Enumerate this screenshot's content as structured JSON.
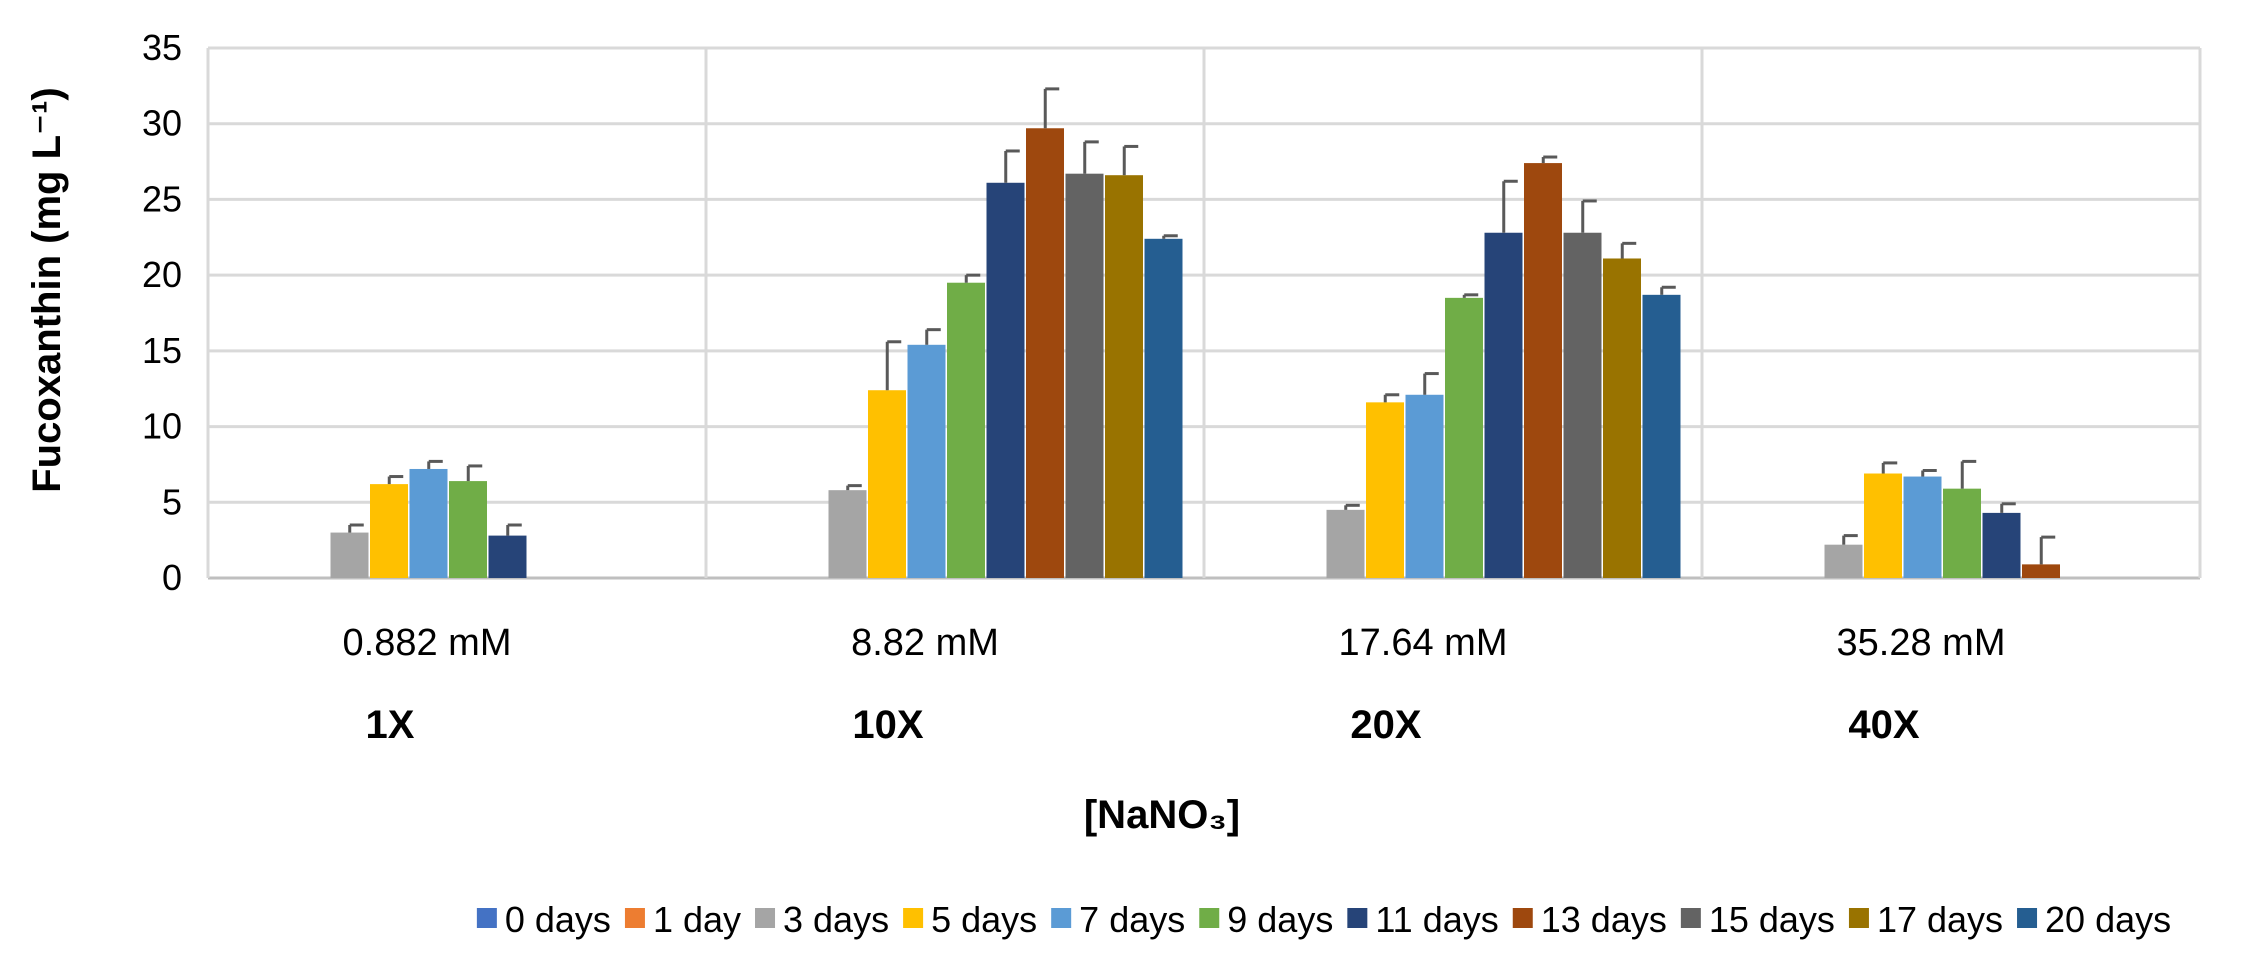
{
  "chart_data": {
    "type": "bar",
    "title": "",
    "ylabel": "Fucoxanthin (mg L⁻¹)",
    "xlabel": "[NaNO₃]",
    "ylim": [
      0,
      35
    ],
    "yticks": [
      0,
      5,
      10,
      15,
      20,
      25,
      30,
      35
    ],
    "grid": true,
    "legend_position": "bottom",
    "categories": [
      "0.882 mM",
      "8.82 mM",
      "17.64 mM",
      "35.28 mM"
    ],
    "category_sublabels": [
      "1X",
      "10X",
      "20X",
      "40X"
    ],
    "series": [
      {
        "name": "0 days",
        "color": "#4472C4",
        "values": [
          0,
          0,
          0,
          0
        ],
        "errors": [
          0,
          0,
          0,
          0
        ]
      },
      {
        "name": "1 day",
        "color": "#ED7D31",
        "values": [
          0,
          0,
          0,
          0
        ],
        "errors": [
          0,
          0,
          0,
          0
        ]
      },
      {
        "name": "3 days",
        "color": "#A5A5A5",
        "values": [
          3.0,
          5.8,
          4.5,
          2.2
        ],
        "errors": [
          0.5,
          0.3,
          0.3,
          0.6
        ]
      },
      {
        "name": "5 days",
        "color": "#FFC000",
        "values": [
          6.2,
          12.4,
          11.6,
          6.9
        ],
        "errors": [
          0.5,
          3.2,
          0.5,
          0.7
        ]
      },
      {
        "name": "7 days",
        "color": "#5B9BD5",
        "values": [
          7.2,
          15.4,
          12.1,
          6.7
        ],
        "errors": [
          0.5,
          1.0,
          1.4,
          0.4
        ]
      },
      {
        "name": "9 days",
        "color": "#70AD47",
        "values": [
          6.4,
          19.5,
          18.5,
          5.9
        ],
        "errors": [
          1.0,
          0.5,
          0.2,
          1.8
        ]
      },
      {
        "name": "11 days",
        "color": "#264478",
        "values": [
          2.8,
          26.1,
          22.8,
          4.3
        ],
        "errors": [
          0.7,
          2.1,
          3.4,
          0.6
        ]
      },
      {
        "name": "13 days",
        "color": "#9E480E",
        "values": [
          0,
          29.7,
          27.4,
          0.9
        ],
        "errors": [
          0,
          2.6,
          0.4,
          1.8
        ]
      },
      {
        "name": "15 days",
        "color": "#636363",
        "values": [
          0,
          26.7,
          22.8,
          0
        ],
        "errors": [
          0,
          2.1,
          2.1,
          0
        ]
      },
      {
        "name": "17 days",
        "color": "#997300",
        "values": [
          0,
          26.6,
          21.1,
          0
        ],
        "errors": [
          0,
          1.9,
          1.0,
          0
        ]
      },
      {
        "name": "20 days",
        "color": "#255E91",
        "values": [
          0,
          22.4,
          18.7,
          0
        ],
        "errors": [
          0,
          0.2,
          0.5,
          0
        ]
      }
    ]
  },
  "colors": {
    "grid": "#D9D9D9",
    "axis": "#BFBFBF",
    "error_bar": "#595959"
  }
}
